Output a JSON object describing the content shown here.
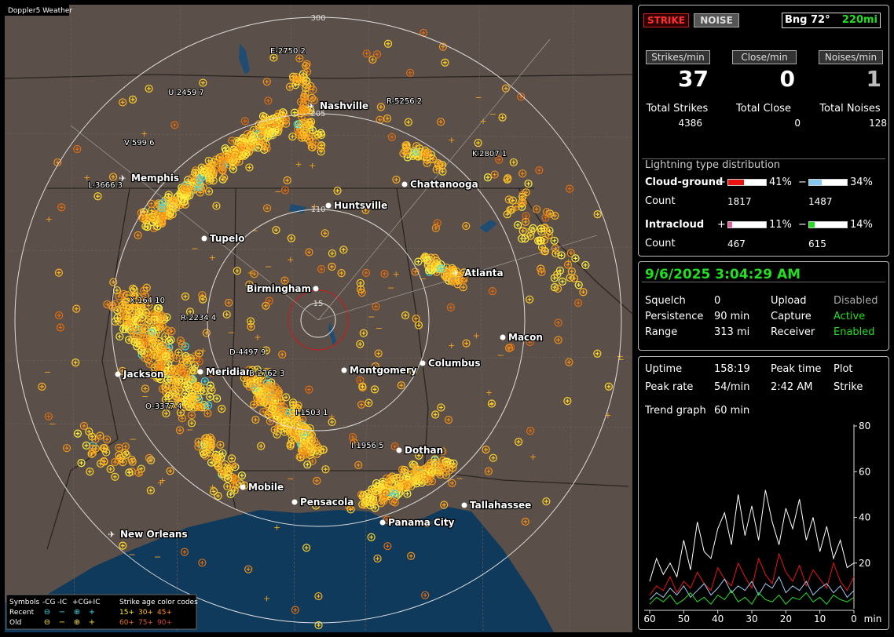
{
  "header": {
    "title": "Doppler5 Weather"
  },
  "map": {
    "ring_labels": [
      "300",
      "205",
      "110",
      "15"
    ],
    "cities": [
      "Nashville",
      "Memphis",
      "Chattanooga",
      "Huntsville",
      "Tupelo",
      "Atlanta",
      "Birmingham",
      "Macon",
      "Jackson",
      "Meridian",
      "Montgomery",
      "Columbus",
      "Dothan",
      "Mobile",
      "Pensacola",
      "Tallahassee",
      "Panama City",
      "New Orleans"
    ],
    "strike_labels": [
      "E-2750 2",
      "U-2459 7",
      "R-5256 2",
      "V-599 6",
      "K-2807 1",
      "L-3666 3",
      "X-164 10",
      "R-2234 4",
      "D-4497 9",
      "B-2762 3",
      "O-3377 4",
      "I-1503 1",
      "I-1956 5"
    ],
    "legend": {
      "symbols": "Symbols",
      "types": [
        "-CG",
        "-IC",
        "+CG",
        "+IC"
      ],
      "age_title": "Strike age color codes",
      "recent": "Recent",
      "old": "Old",
      "recent_ages": [
        "15+",
        "30+",
        "45+"
      ],
      "old_ages": [
        "60+",
        "75+",
        "90+"
      ]
    }
  },
  "status": {
    "mode_buttons": [
      "STRIKE",
      "NOISE"
    ],
    "bearing": "Bng 72°",
    "bearing_range": "220mi",
    "rates": [
      {
        "label": "Strikes/min",
        "value": 37
      },
      {
        "label": "Close/min",
        "value": 0
      },
      {
        "label": "Noises/min",
        "value": 1
      }
    ],
    "totals": [
      {
        "label": "Total Strikes",
        "value": 4386
      },
      {
        "label": "Total Close",
        "value": 0
      },
      {
        "label": "Total Noises",
        "value": 128
      }
    ],
    "distribution": {
      "title": "Lightning type distribution",
      "count_label": "Count",
      "rows": [
        {
          "name": "Cloud-ground",
          "pos_sign": "+",
          "pos": {
            "value": 41,
            "label": "41%"
          },
          "pos_color": "#ee1111",
          "neg_sign": "−",
          "neg": {
            "value": 34,
            "label": "34%"
          },
          "neg_color": "#88c8f0",
          "pos_count": 1817,
          "neg_count": 1487
        },
        {
          "name": "Intracloud",
          "pos_sign": "+",
          "pos": {
            "value": 11,
            "label": "11%"
          },
          "pos_color": "#e060a0",
          "neg_sign": "−",
          "neg": {
            "value": 14,
            "label": "14%"
          },
          "neg_color": "#22dd22",
          "pos_count": 467,
          "neg_count": 615
        }
      ]
    }
  },
  "receiver": {
    "datetime": "9/6/2025 3:04:29 AM",
    "rows": [
      [
        "Squelch",
        0,
        "Upload",
        "Disabled"
      ],
      [
        "Persistence",
        "90 min",
        "Capture",
        "Active"
      ],
      [
        "Range",
        "313 mi",
        "Receiver",
        "Enabled"
      ]
    ]
  },
  "stats": {
    "uptime_label": "Uptime",
    "uptime": "158:19",
    "peak_time_label": "Peak time",
    "plot_label": "Plot",
    "peak_rate_label": "Peak rate",
    "peak_rate": "54/min",
    "peak_time": "2:42 AM",
    "plot": "Strike",
    "trend_label": "Trend graph",
    "trend_span": "60 min"
  },
  "chart_data": {
    "type": "line",
    "xlim": [
      60,
      0
    ],
    "ylim": [
      0,
      80
    ],
    "yticks": [
      20,
      40,
      60,
      80
    ],
    "xticks": [
      60,
      50,
      40,
      30,
      20,
      10,
      0
    ],
    "x_label": "min",
    "x": [
      60,
      58,
      56,
      54,
      52,
      50,
      48,
      46,
      44,
      42,
      40,
      38,
      36,
      34,
      32,
      30,
      28,
      26,
      24,
      22,
      20,
      18,
      16,
      14,
      12,
      10,
      8,
      6,
      4,
      2,
      0
    ],
    "series": [
      {
        "color": "#ffffff",
        "values": [
          12,
          22,
          15,
          20,
          14,
          30,
          17,
          38,
          25,
          22,
          35,
          42,
          28,
          50,
          32,
          45,
          30,
          52,
          38,
          28,
          44,
          35,
          48,
          30,
          40,
          25,
          36,
          22,
          30,
          18,
          20
        ]
      },
      {
        "color": "#ee1111",
        "values": [
          6,
          10,
          8,
          14,
          7,
          12,
          9,
          16,
          11,
          8,
          18,
          13,
          10,
          20,
          14,
          9,
          22,
          15,
          11,
          24,
          16,
          12,
          19,
          10,
          17,
          13,
          9,
          20,
          12,
          8,
          14
        ]
      },
      {
        "color": "#9fc8f0",
        "values": [
          4,
          7,
          5,
          9,
          6,
          10,
          5,
          8,
          11,
          6,
          9,
          13,
          7,
          10,
          8,
          12,
          6,
          11,
          9,
          14,
          7,
          10,
          8,
          12,
          6,
          9,
          11,
          7,
          10,
          5,
          8
        ]
      },
      {
        "color": "#22dd22",
        "values": [
          2,
          5,
          3,
          6,
          2,
          4,
          7,
          3,
          5,
          2,
          6,
          4,
          8,
          3,
          5,
          2,
          7,
          4,
          3,
          6,
          2,
          5,
          4,
          7,
          3,
          5,
          2,
          6,
          4,
          3,
          5
        ]
      }
    ]
  }
}
